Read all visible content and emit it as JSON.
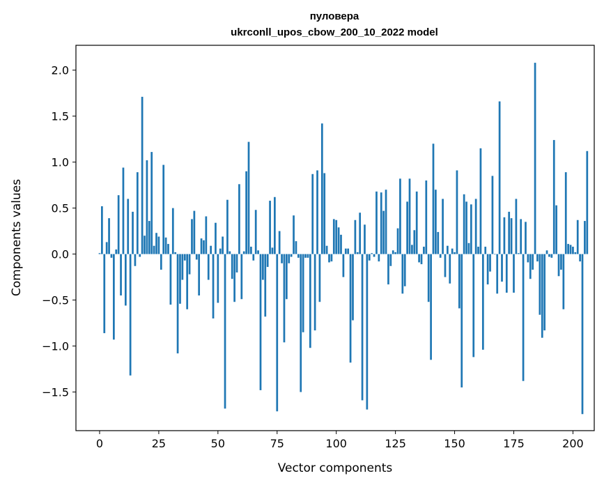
{
  "chart_data": {
    "type": "bar",
    "title_line1": "пуловера",
    "title_line2": "ukrconll_upos_cbow_200_10_2022 model",
    "xlabel": "Vector components",
    "ylabel": "Components values",
    "xlim": [
      -10,
      209
    ],
    "ylim": [
      -1.92,
      2.27
    ],
    "xticks": [
      0,
      25,
      50,
      75,
      100,
      125,
      150,
      175,
      200
    ],
    "yticks": [
      -1.5,
      -1.0,
      -0.5,
      0.0,
      0.5,
      1.0,
      1.5,
      2.0
    ],
    "ytick_labels": [
      "−1.5",
      "−1.0",
      "−0.5",
      "0.0",
      "0.5",
      "1.0",
      "1.5",
      "2.0"
    ],
    "bar_color": "#1f77b4",
    "grid": false,
    "values": [
      0.01,
      0.52,
      -0.86,
      0.13,
      0.39,
      -0.04,
      -0.93,
      0.05,
      0.64,
      -0.45,
      0.94,
      -0.56,
      0.6,
      -1.32,
      0.46,
      -0.13,
      0.89,
      -0.03,
      1.71,
      0.2,
      1.02,
      0.36,
      1.11,
      0.09,
      0.23,
      0.19,
      -0.17,
      0.97,
      0.18,
      0.11,
      -0.55,
      0.5,
      0.02,
      -1.08,
      -0.54,
      -0.28,
      -0.07,
      -0.6,
      -0.22,
      0.38,
      0.47,
      -0.06,
      -0.45,
      0.17,
      0.15,
      0.41,
      -0.28,
      0.09,
      -0.7,
      0.34,
      -0.53,
      0.06,
      0.19,
      -1.68,
      0.59,
      0.03,
      -0.27,
      -0.52,
      -0.2,
      0.76,
      -0.49,
      0.03,
      0.9,
      1.22,
      0.08,
      -0.07,
      0.48,
      0.04,
      -1.48,
      -0.28,
      -0.68,
      -0.14,
      0.58,
      0.07,
      0.62,
      -1.71,
      0.25,
      -0.1,
      -0.96,
      -0.49,
      -0.1,
      -0.03,
      0.42,
      0.14,
      -0.04,
      -1.5,
      -0.85,
      -0.04,
      -0.04,
      -1.02,
      0.87,
      -0.83,
      0.91,
      -0.52,
      1.42,
      0.88,
      0.09,
      -0.09,
      -0.08,
      0.38,
      0.37,
      0.29,
      0.21,
      -0.25,
      0.06,
      0.06,
      -1.18,
      -0.72,
      0.37,
      0.02,
      0.45,
      -1.59,
      0.32,
      -1.69,
      -0.07,
      0.01,
      -0.03,
      0.68,
      -0.08,
      0.67,
      0.47,
      0.7,
      -0.33,
      -0.13,
      0.04,
      0.02,
      0.28,
      0.82,
      -0.43,
      -0.35,
      0.57,
      0.82,
      0.1,
      0.26,
      0.68,
      -0.09,
      -0.11,
      0.08,
      0.8,
      -0.52,
      -1.15,
      1.2,
      0.7,
      0.24,
      -0.04,
      0.6,
      -0.25,
      0.09,
      -0.32,
      0.06,
      0.02,
      0.91,
      -0.59,
      -1.45,
      0.65,
      0.57,
      0.12,
      0.54,
      -1.12,
      0.6,
      0.08,
      1.15,
      -1.04,
      0.08,
      -0.33,
      -0.19,
      0.85,
      0.0,
      -0.43,
      1.66,
      -0.3,
      0.4,
      -0.42,
      0.46,
      0.39,
      -0.42,
      0.6,
      0.01,
      0.38,
      -1.38,
      0.35,
      -0.09,
      -0.27,
      -0.17,
      2.08,
      -0.08,
      -0.66,
      -0.91,
      -0.83,
      0.04,
      -0.03,
      -0.04,
      1.24,
      0.53,
      -0.24,
      -0.17,
      -0.6,
      0.89,
      0.11,
      0.1,
      0.08,
      0.02,
      0.37,
      -0.08,
      -1.74,
      0.36,
      1.12
    ]
  }
}
